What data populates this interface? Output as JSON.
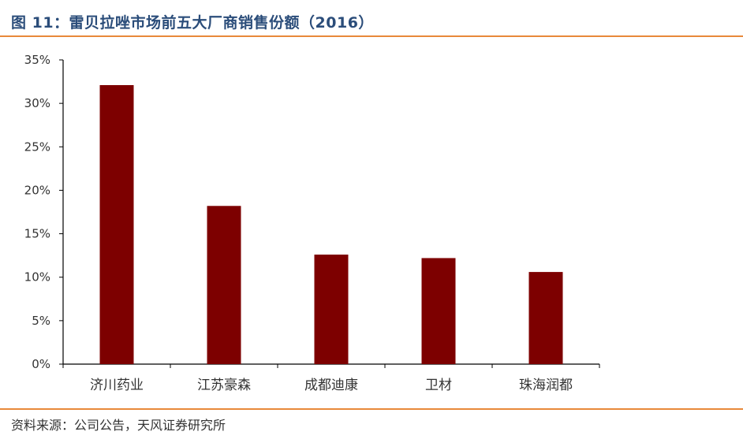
{
  "figure": {
    "title": "图 11：雷贝拉唑市场前五大厂商销售份额（2016）",
    "source": "资料来源：公司公告，天风证券研究所"
  },
  "colors": {
    "bar": "#7d0000",
    "accent_rule": "#e8893a",
    "title": "#2b4d7a",
    "axis": "#000000"
  },
  "chart_data": {
    "type": "bar",
    "title": "",
    "xlabel": "",
    "ylabel": "",
    "categories": [
      "济川药业",
      "江苏豪森",
      "成都迪康",
      "卫材",
      "珠海润都"
    ],
    "values": [
      32.1,
      18.2,
      12.6,
      12.2,
      10.6
    ],
    "unit": "%",
    "ylim": [
      0,
      35
    ],
    "yticks": [
      0,
      5,
      10,
      15,
      20,
      25,
      30,
      35
    ],
    "ytick_labels": [
      "0%",
      "5%",
      "10%",
      "15%",
      "20%",
      "25%",
      "30%",
      "35%"
    ],
    "grid": false,
    "legend": "none"
  }
}
